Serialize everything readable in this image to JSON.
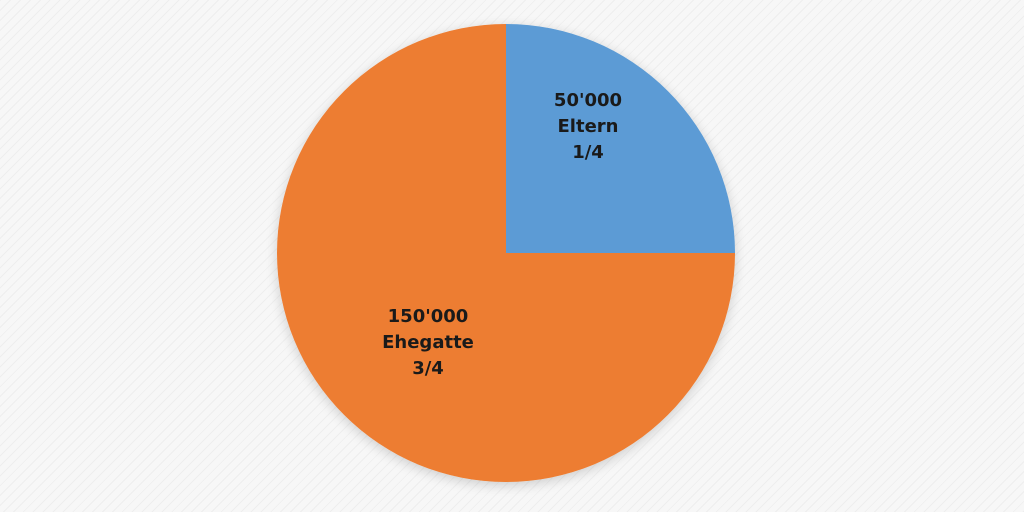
{
  "chart_data": {
    "type": "pie",
    "title": "",
    "start_angle_deg": 0,
    "direction": "clockwise",
    "legend": "none",
    "slices": [
      {
        "value": 50000,
        "fraction": 0.25,
        "color": "#5b9bd5",
        "labels": [
          "50'000",
          "Eltern",
          "1/4"
        ]
      },
      {
        "value": 150000,
        "fraction": 0.75,
        "color": "#ed7d31",
        "labels": [
          "150'000",
          "Ehegatte",
          "3/4"
        ]
      }
    ]
  }
}
